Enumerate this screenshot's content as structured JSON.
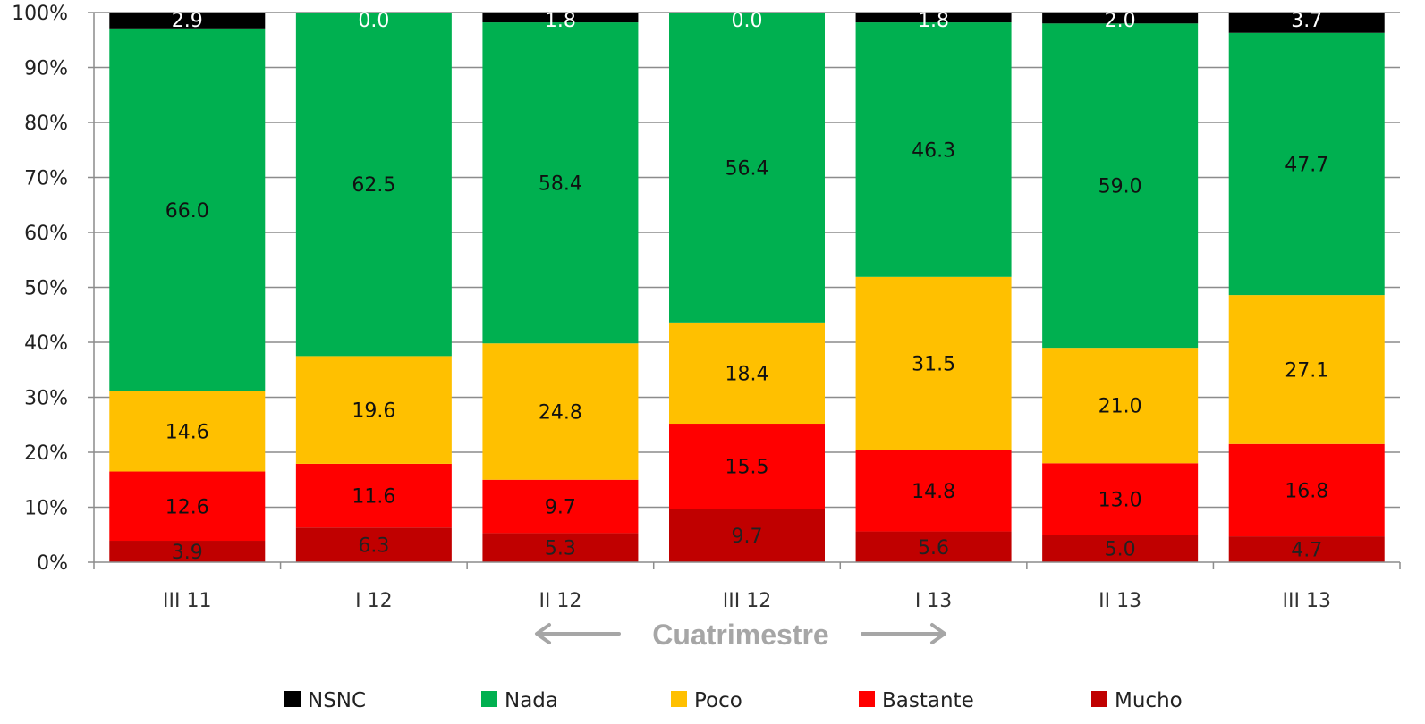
{
  "chart_data": {
    "type": "bar",
    "stacked": true,
    "percent": true,
    "categories": [
      "III 11",
      "I 12",
      "II 12",
      "III 12",
      "I 13",
      "II 13",
      "III 13"
    ],
    "series": [
      {
        "name": "Mucho",
        "color": "#c00000",
        "values": [
          3.9,
          6.3,
          5.3,
          9.7,
          5.6,
          5.0,
          4.7
        ]
      },
      {
        "name": "Bastante",
        "color": "#ff0000",
        "values": [
          12.6,
          11.6,
          9.7,
          15.5,
          14.8,
          13.0,
          16.8
        ]
      },
      {
        "name": "Poco",
        "color": "#ffc000",
        "values": [
          14.6,
          19.6,
          24.8,
          18.4,
          31.5,
          21.0,
          27.1
        ]
      },
      {
        "name": "Nada",
        "color": "#00b050",
        "values": [
          66.0,
          62.5,
          58.4,
          56.4,
          46.3,
          59.0,
          47.7
        ]
      },
      {
        "name": "NSNC",
        "color": "#000000",
        "values": [
          2.9,
          0.0,
          1.8,
          0.0,
          1.8,
          2.0,
          3.7
        ]
      }
    ],
    "legend_order": [
      "NSNC",
      "Nada",
      "Poco",
      "Bastante",
      "Mucho"
    ],
    "ylim": [
      0,
      100
    ],
    "yticks": [
      "0%",
      "10%",
      "20%",
      "30%",
      "40%",
      "50%",
      "60%",
      "70%",
      "80%",
      "90%",
      "100%"
    ],
    "xlabel": "Cuatrimestre",
    "grid": true,
    "legend_position": "bottom"
  }
}
